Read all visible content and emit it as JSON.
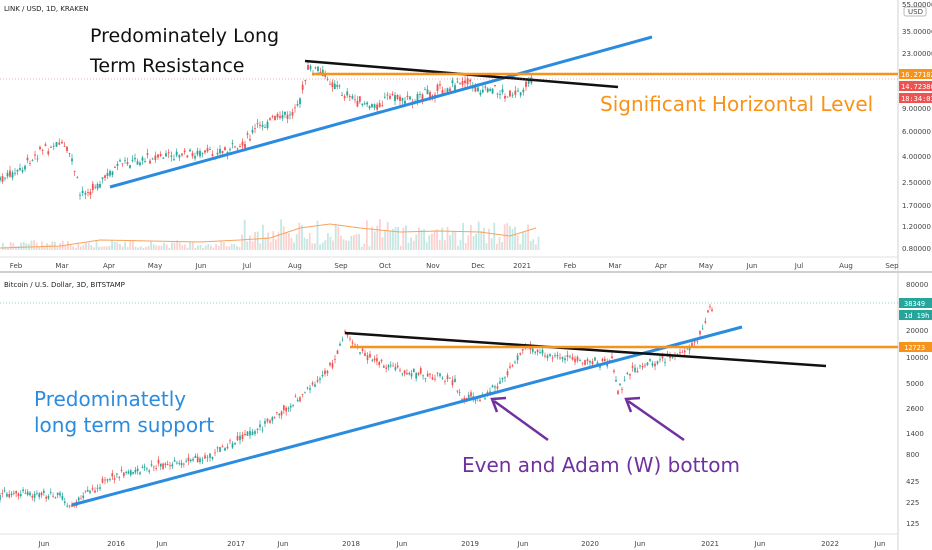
{
  "colors": {
    "up": "#26a69a",
    "down": "#ef5350",
    "blue_trend": "#2b8cdf",
    "black_trend": "#111111",
    "orange_level": "#f7931a",
    "purple": "#7030a0",
    "volume_ma": "#f7a35c"
  },
  "chart_data": [
    {
      "type": "candlestick",
      "symbol_header": "LINK / USD, 1D, KRAKEN",
      "currency_badge": "USD",
      "scale": "log",
      "x_ticks": [
        "Feb",
        "Mar",
        "Apr",
        "May",
        "Jun",
        "Jul",
        "Aug",
        "Sep",
        "Oct",
        "Nov",
        "Dec",
        "2021",
        "Feb",
        "Mar",
        "Apr",
        "May",
        "Jun",
        "Jul",
        "Aug",
        "Sep"
      ],
      "y_ticks": [
        "55.00000",
        "35.00000",
        "23.00000",
        "9.00000",
        "6.00000",
        "4.00000",
        "2.50000",
        "1.70000",
        "1.20000",
        "0.80000"
      ],
      "price_tags": [
        "16.27182",
        "14.72380",
        "18:34:03"
      ],
      "trend_lines": [
        {
          "label": "Predominately Long Term Resistance",
          "color": "black_trend"
        },
        {
          "label": "",
          "color": "blue_trend"
        }
      ],
      "horizontal_level": {
        "label": "Significant Horizontal Level",
        "value": 16.27
      }
    },
    {
      "type": "candlestick",
      "symbol_header": "Bitcoin / U.S. Dollar, 3D, BITSTAMP",
      "scale": "log",
      "x_ticks": [
        "Jun",
        "2016",
        "Jun",
        "2017",
        "Jun",
        "2018",
        "Jun",
        "2019",
        "Jun",
        "2020",
        "Jun",
        "2021",
        "Jun",
        "2022",
        "Jun"
      ],
      "y_ticks": [
        "80000",
        "20000",
        "10000",
        "5000",
        "2600",
        "1400",
        "800",
        "425",
        "225",
        "125"
      ],
      "price_tags": [
        "38349",
        "1d 19h",
        "12723"
      ],
      "horizontal_level": {
        "value": 12723
      },
      "trend_lines": [
        {
          "label": "Predominatetly long term support",
          "color": "blue_trend"
        },
        {
          "label": "",
          "color": "black_trend"
        }
      ],
      "annotation": "Even and Adam (W) bottom"
    }
  ],
  "annotations": {
    "top_resistance_line1": "Predominately Long",
    "top_resistance_line2": "Term Resistance",
    "top_level": "Significant Horizontal Level",
    "bottom_support_line1": "Predominatetly",
    "bottom_support_line2": "long term support",
    "bottom_bottom": "Even and Adam (W) bottom"
  }
}
